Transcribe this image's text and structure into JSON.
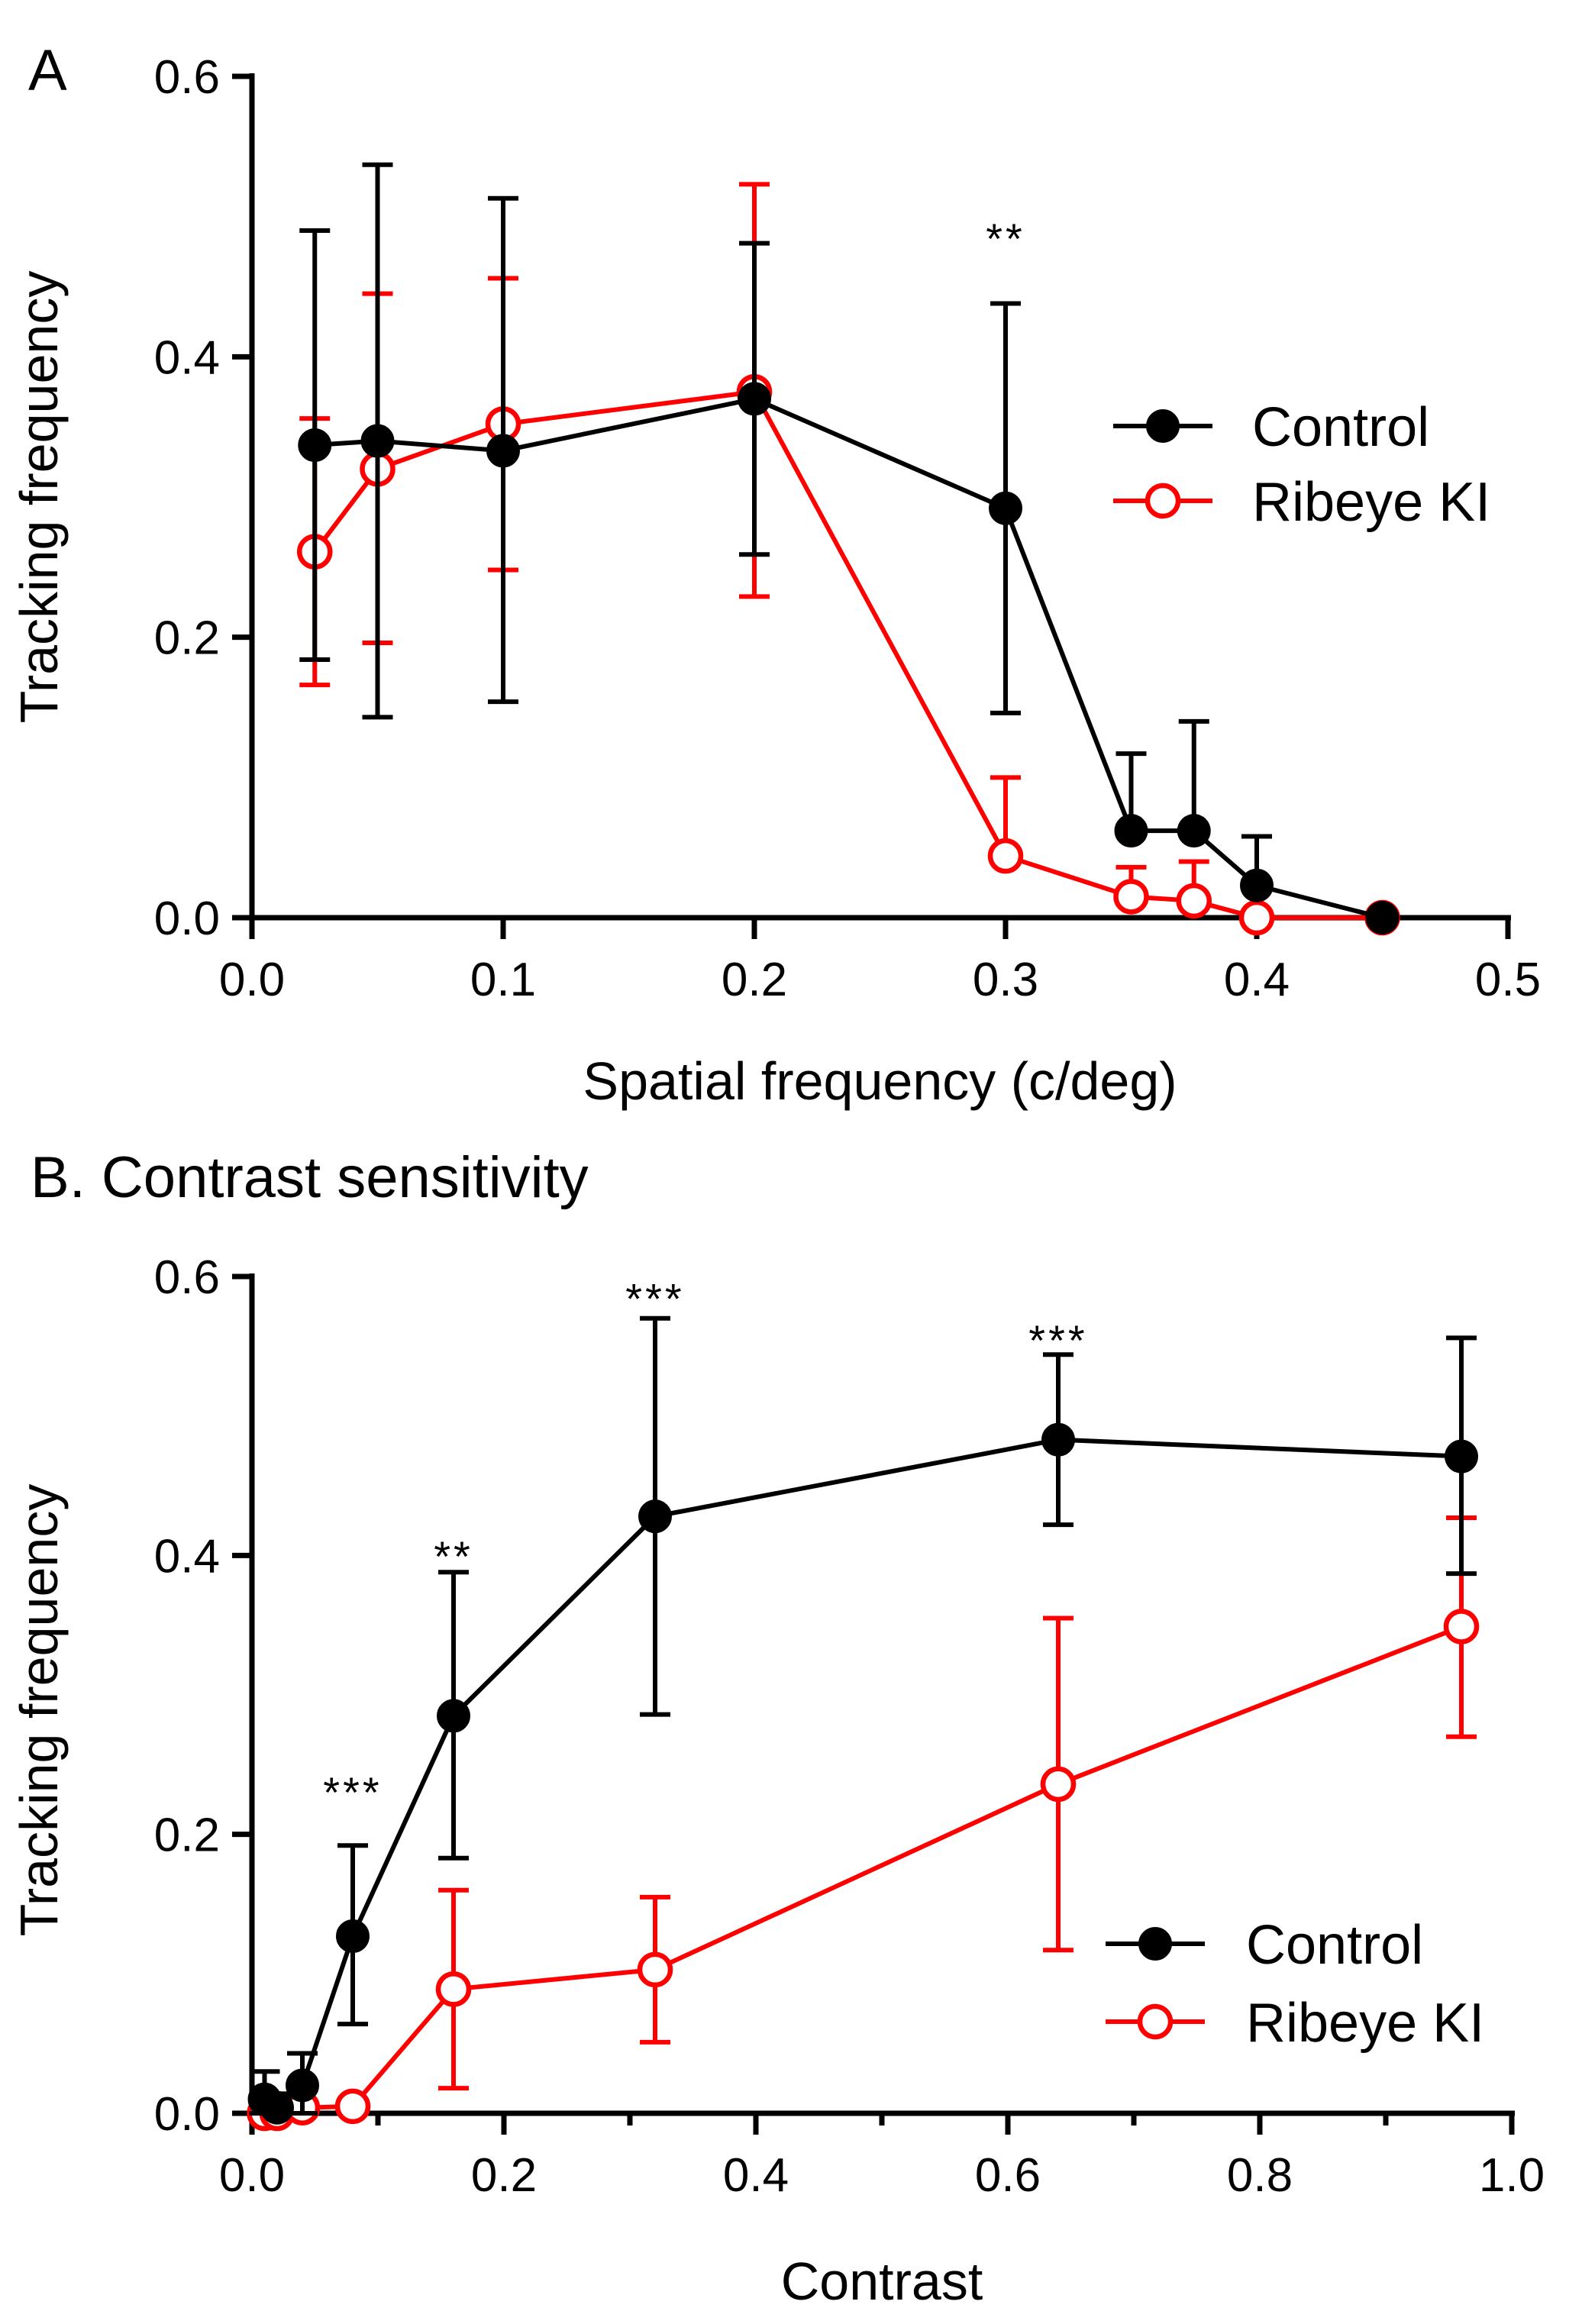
{
  "chart_data": [
    {
      "type": "line",
      "panel_label": "A",
      "title": "",
      "xlabel": "Spatial frequency (c/deg)",
      "ylabel": "Tracking frequency",
      "xlim": [
        0.0,
        0.5
      ],
      "ylim": [
        0.0,
        0.6
      ],
      "xticks": [
        0.0,
        0.1,
        0.2,
        0.3,
        0.4,
        0.5
      ],
      "xtick_labels": [
        "0.0",
        "0.1",
        "0.2",
        "0.3",
        "0.4",
        "0.5"
      ],
      "yticks": [
        0.0,
        0.2,
        0.4,
        0.6
      ],
      "ytick_labels": [
        "0.0",
        "0.2",
        "0.4",
        "0.6"
      ],
      "legend_position": "right",
      "series": [
        {
          "name": "Control",
          "color": "#000000",
          "marker": "filled-circle",
          "x": [
            0.025,
            0.05,
            0.1,
            0.2,
            0.3,
            0.35,
            0.375,
            0.4,
            0.45
          ],
          "y": [
            0.337,
            0.34,
            0.333,
            0.37,
            0.292,
            0.062,
            0.062,
            0.023,
            0.0
          ],
          "err_upper": [
            0.49,
            0.537,
            0.513,
            0.481,
            0.438,
            0.117,
            0.14,
            0.058,
            0.0
          ],
          "err_lower": [
            0.184,
            0.143,
            0.154,
            0.259,
            0.146,
            0.062,
            0.062,
            0.023,
            0.0
          ]
        },
        {
          "name": "Ribeye KI",
          "color": "#ff0000",
          "marker": "open-circle",
          "x": [
            0.025,
            0.05,
            0.1,
            0.2,
            0.3,
            0.35,
            0.375,
            0.4,
            0.45
          ],
          "y": [
            0.261,
            0.32,
            0.352,
            0.375,
            0.044,
            0.015,
            0.012,
            0.0,
            0.0
          ],
          "err_upper": [
            0.356,
            0.445,
            0.456,
            0.523,
            0.1,
            0.036,
            0.04,
            0.0,
            0.0
          ],
          "err_lower": [
            0.166,
            0.196,
            0.248,
            0.229,
            0.044,
            0.015,
            0.012,
            0.0,
            0.0
          ]
        }
      ],
      "annotations": [
        {
          "text": "**",
          "x": 0.3,
          "y": 0.49
        }
      ]
    },
    {
      "type": "line",
      "panel_label": "",
      "title": "B. Contrast sensitivity",
      "xlabel": "Contrast",
      "ylabel": "Tracking frequency",
      "xlim": [
        0.0,
        1.0
      ],
      "ylim": [
        0.0,
        0.6
      ],
      "xticks": [
        0.0,
        0.2,
        0.4,
        0.6,
        0.8,
        1.0
      ],
      "xtick_labels": [
        "0.0",
        "0.2",
        "0.4",
        "0.6",
        "0.8",
        "1.0"
      ],
      "yticks": [
        0.0,
        0.2,
        0.4,
        0.6
      ],
      "ytick_labels": [
        "0.0",
        "0.2",
        "0.4",
        "0.6"
      ],
      "legend_position": "bottom-right",
      "series": [
        {
          "name": "Control",
          "color": "#000000",
          "marker": "filled-circle",
          "x": [
            0.01,
            0.02,
            0.04,
            0.08,
            0.16,
            0.32,
            0.64,
            0.96
          ],
          "y": [
            0.01,
            0.004,
            0.02,
            0.127,
            0.285,
            0.428,
            0.483,
            0.471
          ],
          "err_upper": [
            0.03,
            0.014,
            0.043,
            0.192,
            0.388,
            0.57,
            0.544,
            0.556
          ],
          "err_lower": [
            0.0,
            0.0,
            0.0,
            0.064,
            0.183,
            0.286,
            0.422,
            0.387
          ]
        },
        {
          "name": "Ribeye KI",
          "color": "#ff0000",
          "marker": "open-circle",
          "x": [
            0.01,
            0.02,
            0.04,
            0.08,
            0.16,
            0.32,
            0.64,
            0.96
          ],
          "y": [
            0.0,
            0.0,
            0.004,
            0.005,
            0.089,
            0.103,
            0.236,
            0.349
          ],
          "err_upper": [
            0.0,
            0.0,
            0.006,
            0.007,
            0.16,
            0.155,
            0.355,
            0.427
          ],
          "err_lower": [
            0.0,
            0.0,
            0.0,
            0.0,
            0.018,
            0.051,
            0.117,
            0.27
          ]
        }
      ],
      "annotations": [
        {
          "text": "***",
          "x": 0.08,
          "y": 0.236
        },
        {
          "text": "**",
          "x": 0.16,
          "y": 0.405
        },
        {
          "text": "***",
          "x": 0.32,
          "y": 0.59
        },
        {
          "text": "***",
          "x": 0.64,
          "y": 0.56
        }
      ]
    }
  ]
}
